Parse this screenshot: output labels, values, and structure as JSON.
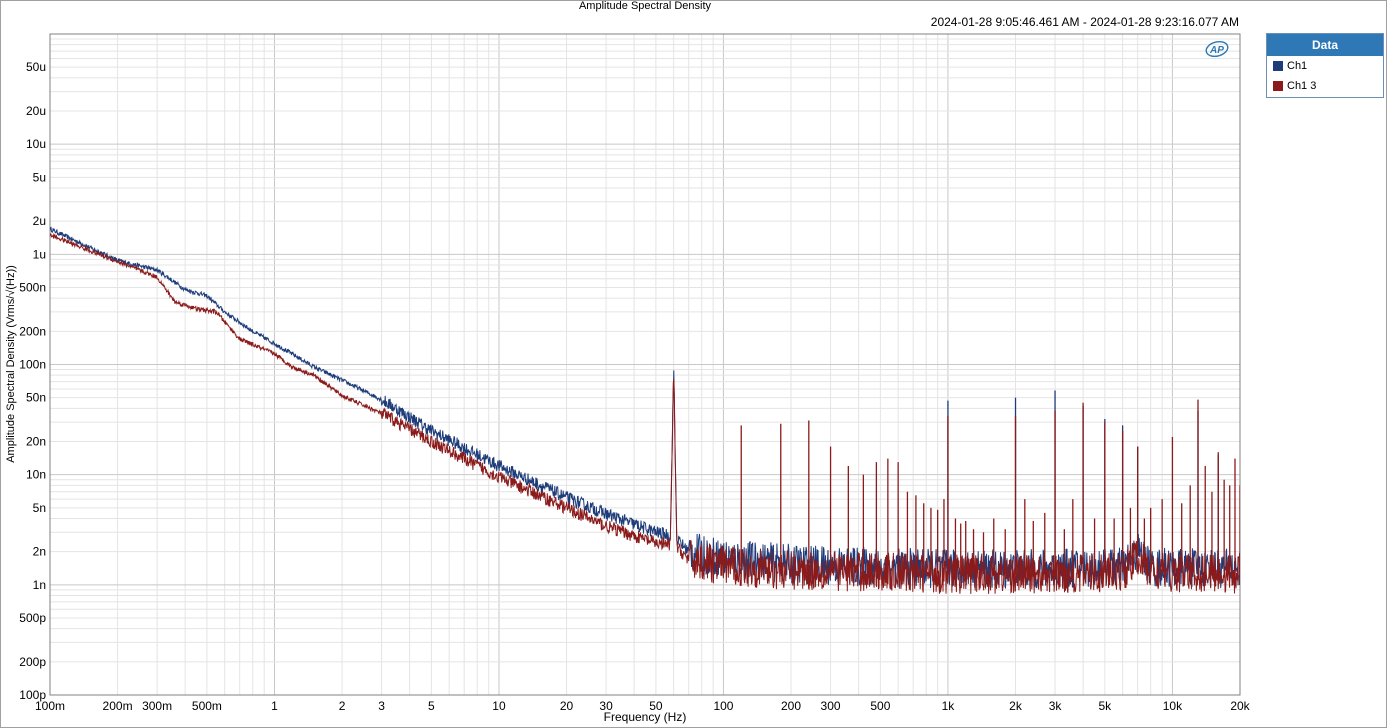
{
  "chart_data": {
    "type": "line",
    "title": "Amplitude Spectral Density",
    "subtitle": "2024-01-28 9:05:46.461 AM - 2024-01-28 9:23:16.077 AM",
    "xlabel": "Frequency (Hz)",
    "ylabel": "Amplitude Spectral Density (Vrms/√(Hz))",
    "xscale": "log",
    "yscale": "log",
    "xlim": [
      0.1,
      20000
    ],
    "ylim": [
      1e-10,
      0.0001
    ],
    "grid": true,
    "legend_position": "right",
    "legend_title": "Data",
    "x_ticks": [
      {
        "v": 0.1,
        "label": "100m"
      },
      {
        "v": 0.2,
        "label": "200m"
      },
      {
        "v": 0.3,
        "label": "300m"
      },
      {
        "v": 0.5,
        "label": "500m"
      },
      {
        "v": 1,
        "label": "1"
      },
      {
        "v": 2,
        "label": "2"
      },
      {
        "v": 3,
        "label": "3"
      },
      {
        "v": 5,
        "label": "5"
      },
      {
        "v": 10,
        "label": "10"
      },
      {
        "v": 20,
        "label": "20"
      },
      {
        "v": 30,
        "label": "30"
      },
      {
        "v": 50,
        "label": "50"
      },
      {
        "v": 100,
        "label": "100"
      },
      {
        "v": 200,
        "label": "200"
      },
      {
        "v": 300,
        "label": "300"
      },
      {
        "v": 500,
        "label": "500"
      },
      {
        "v": 1000,
        "label": "1k"
      },
      {
        "v": 2000,
        "label": "2k"
      },
      {
        "v": 3000,
        "label": "3k"
      },
      {
        "v": 5000,
        "label": "5k"
      },
      {
        "v": 10000,
        "label": "10k"
      },
      {
        "v": 20000,
        "label": "20k"
      }
    ],
    "y_ticks": [
      {
        "v": 5e-05,
        "label": "50u"
      },
      {
        "v": 2e-05,
        "label": "20u"
      },
      {
        "v": 1e-05,
        "label": "10u"
      },
      {
        "v": 5e-06,
        "label": "5u"
      },
      {
        "v": 2e-06,
        "label": "2u"
      },
      {
        "v": 1e-06,
        "label": "1u"
      },
      {
        "v": 5e-07,
        "label": "500n"
      },
      {
        "v": 2e-07,
        "label": "200n"
      },
      {
        "v": 1e-07,
        "label": "100n"
      },
      {
        "v": 5e-08,
        "label": "50n"
      },
      {
        "v": 2e-08,
        "label": "20n"
      },
      {
        "v": 1e-08,
        "label": "10n"
      },
      {
        "v": 5e-09,
        "label": "5n"
      },
      {
        "v": 2e-09,
        "label": "2n"
      },
      {
        "v": 1e-09,
        "label": "1n"
      },
      {
        "v": 5e-10,
        "label": "500p"
      },
      {
        "v": 2e-10,
        "label": "200p"
      },
      {
        "v": 1e-10,
        "label": "100p"
      }
    ],
    "series": [
      {
        "name": "Ch1",
        "color": "#1f3c7a",
        "points": [
          [
            0.1,
            1.7e-06
          ],
          [
            0.2,
            8.8e-07
          ],
          [
            0.3,
            7.2e-07
          ],
          [
            0.4,
            4.8e-07
          ],
          [
            0.5,
            4.2e-07
          ],
          [
            0.6,
            3e-07
          ],
          [
            0.8,
            2e-07
          ],
          [
            1,
            1.55e-07
          ],
          [
            1.5,
            9.5e-08
          ],
          [
            2,
            7.2e-08
          ],
          [
            3,
            4.8e-08
          ],
          [
            5,
            2.5e-08
          ],
          [
            10,
            1.2e-08
          ],
          [
            20,
            6.2e-09
          ],
          [
            30,
            4.4e-09
          ],
          [
            50,
            3e-09
          ],
          [
            58,
            2.8e-09
          ],
          [
            60,
            8.8e-08
          ],
          [
            62,
            2.6e-09
          ],
          [
            70,
            2e-09
          ],
          [
            100,
            1.75e-09
          ],
          [
            200,
            1.55e-09
          ],
          [
            500,
            1.45e-09
          ],
          [
            1000,
            1.4e-09
          ],
          [
            3000,
            1.4e-09
          ],
          [
            6000,
            1.45e-09
          ],
          [
            7000,
            2e-09
          ],
          [
            8000,
            1.45e-09
          ],
          [
            20000,
            1.4e-09
          ]
        ],
        "spikes": [
          [
            1000,
            4.7e-08
          ],
          [
            2000,
            5e-08
          ],
          [
            3000,
            5.8e-08
          ],
          [
            4000,
            4.2e-08
          ],
          [
            5000,
            3.2e-08
          ],
          [
            6000,
            2.8e-08
          ],
          [
            7000,
            1.8e-08
          ],
          [
            13000,
            3.8e-08
          ],
          [
            16000,
            1.5e-08
          ]
        ]
      },
      {
        "name": "Ch1  3",
        "color": "#8b1a1a",
        "points": [
          [
            0.1,
            1.5e-06
          ],
          [
            0.2,
            8.6e-07
          ],
          [
            0.3,
            6.2e-07
          ],
          [
            0.36,
            3.7e-07
          ],
          [
            0.45,
            3.2e-07
          ],
          [
            0.55,
            3e-07
          ],
          [
            0.7,
            1.7e-07
          ],
          [
            1,
            1.25e-07
          ],
          [
            1.2,
            9.5e-08
          ],
          [
            1.5,
            8e-08
          ],
          [
            2,
            5.2e-08
          ],
          [
            3,
            3.6e-08
          ],
          [
            5,
            2e-08
          ],
          [
            10,
            9.5e-09
          ],
          [
            20,
            5e-09
          ],
          [
            30,
            3.4e-09
          ],
          [
            50,
            2.4e-09
          ],
          [
            58,
            2.3e-09
          ],
          [
            60,
            9.5e-08
          ],
          [
            62,
            2.2e-09
          ],
          [
            70,
            1.7e-09
          ],
          [
            100,
            1.5e-09
          ],
          [
            200,
            1.35e-09
          ],
          [
            500,
            1.3e-09
          ],
          [
            1000,
            1.25e-09
          ],
          [
            3000,
            1.25e-09
          ],
          [
            6000,
            1.3e-09
          ],
          [
            7000,
            1.8e-09
          ],
          [
            8000,
            1.3e-09
          ],
          [
            20000,
            1.25e-09
          ]
        ],
        "spikes": [
          [
            120,
            2.8e-08
          ],
          [
            180,
            2.9e-08
          ],
          [
            240,
            3.1e-08
          ],
          [
            300,
            1.8e-08
          ],
          [
            360,
            1.2e-08
          ],
          [
            420,
            1e-08
          ],
          [
            480,
            1.3e-08
          ],
          [
            540,
            1.4e-08
          ],
          [
            600,
            1.3e-08
          ],
          [
            660,
            7e-09
          ],
          [
            720,
            6.5e-09
          ],
          [
            780,
            5.5e-09
          ],
          [
            840,
            5e-09
          ],
          [
            900,
            4.8e-09
          ],
          [
            960,
            6e-09
          ],
          [
            1000,
            3.4e-08
          ],
          [
            1080,
            4e-09
          ],
          [
            1140,
            3.6e-09
          ],
          [
            1200,
            3.8e-09
          ],
          [
            1300,
            3.2e-09
          ],
          [
            1440,
            3e-09
          ],
          [
            1600,
            4e-09
          ],
          [
            1800,
            3.2e-09
          ],
          [
            2000,
            3.4e-08
          ],
          [
            2200,
            6e-09
          ],
          [
            2400,
            3.8e-09
          ],
          [
            2700,
            4.5e-09
          ],
          [
            3000,
            3.8e-08
          ],
          [
            3300,
            3.2e-09
          ],
          [
            3600,
            6e-09
          ],
          [
            4000,
            4.5e-08
          ],
          [
            4500,
            4e-09
          ],
          [
            5000,
            3e-08
          ],
          [
            5500,
            4e-09
          ],
          [
            6000,
            2.5e-08
          ],
          [
            6500,
            5e-09
          ],
          [
            7000,
            1.8e-08
          ],
          [
            7500,
            4e-09
          ],
          [
            8000,
            5e-09
          ],
          [
            9000,
            6e-09
          ],
          [
            10000,
            2.2e-08
          ],
          [
            11000,
            5.5e-09
          ],
          [
            12000,
            8e-09
          ],
          [
            13000,
            4.8e-08
          ],
          [
            14000,
            1.2e-08
          ],
          [
            15000,
            7e-09
          ],
          [
            16000,
            1.6e-08
          ],
          [
            17000,
            9e-09
          ],
          [
            18000,
            8e-09
          ],
          [
            19000,
            1.4e-08
          ],
          [
            20000,
            8e-09
          ]
        ]
      }
    ]
  }
}
